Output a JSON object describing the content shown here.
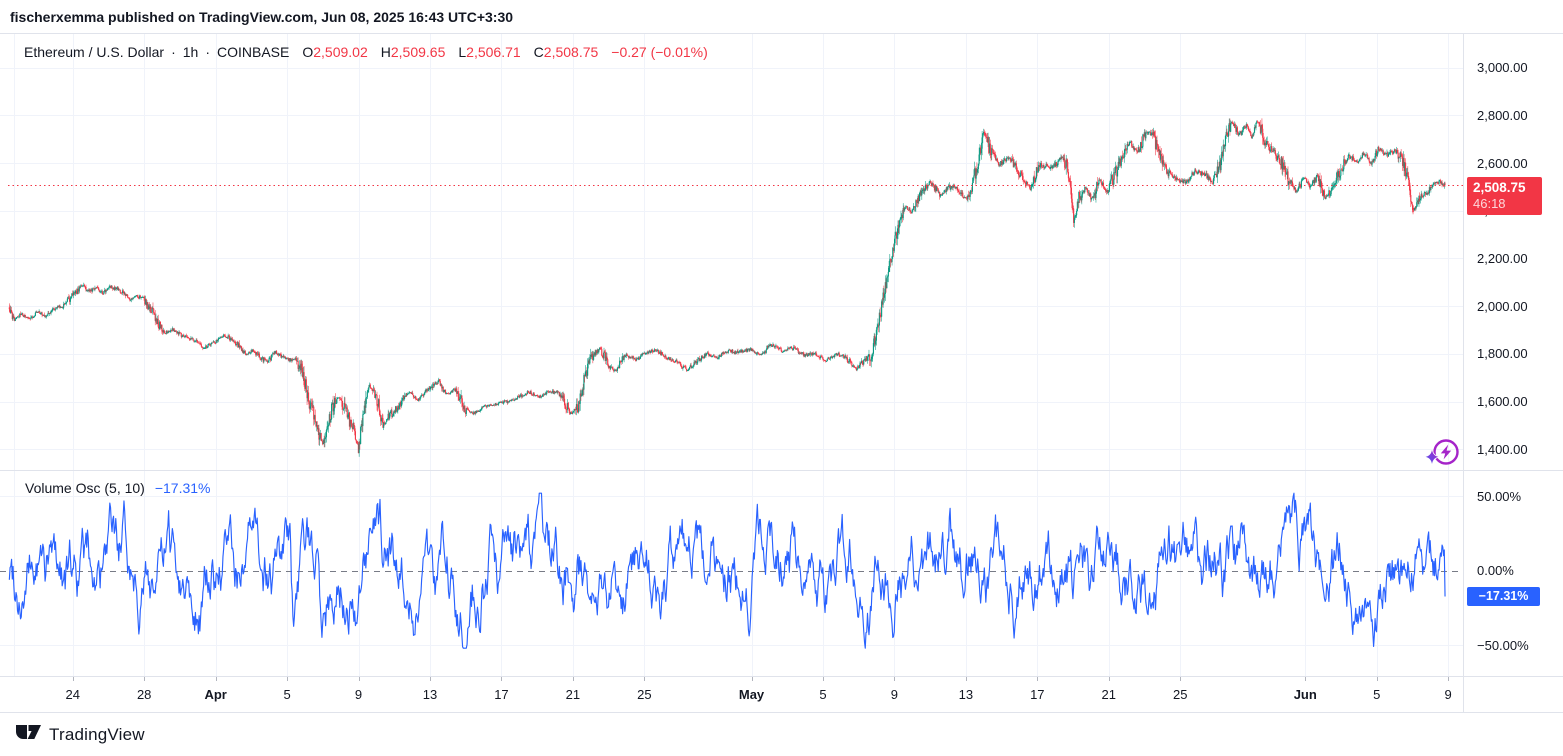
{
  "page": {
    "published_line": "fischerxemma published on TradingView.com, Jun 08, 2025 16:43 UTC+3:30",
    "brand": "TradingView"
  },
  "legend": {
    "title": "Ethereum / U.S. Dollar",
    "dot": "·",
    "interval": "1h",
    "exchange": "COINBASE",
    "o_label": "O",
    "o": "2,509.02",
    "h_label": "H",
    "h": "2,509.65",
    "l_label": "L",
    "l": "2,506.71",
    "c_label": "C",
    "c": "2,508.75",
    "change": "−0.27 (−0.01%)"
  },
  "indicator": {
    "name": "Volume Osc (5, 10)",
    "value": "−17.31%"
  },
  "badges": {
    "last_price": "2,508.75",
    "countdown": "46:18",
    "osc_value": "−17.31%"
  },
  "colors": {
    "up": "#089981",
    "down": "#f23645",
    "accent_blue": "#2962ff",
    "last_price_line": "#f23645",
    "grid": "#f0f3fa",
    "axis_border": "#e0e3eb",
    "text": "#131722",
    "zero_line": "#787b86",
    "tick": "#b2b5be",
    "icon_purple": "#a524c9",
    "icon_blue": "#5158f0"
  },
  "chart_data": [
    {
      "type": "candlestick",
      "title": "Ethereum / U.S. Dollar",
      "interval": "1h",
      "exchange": "COINBASE",
      "ohlc_current": {
        "open": 2509.02,
        "high": 2509.65,
        "low": 2506.71,
        "close": 2508.75,
        "change": -0.27,
        "change_pct": -0.01
      },
      "last_price_line": 2508.75,
      "y_axis": {
        "ticks": [
          {
            "label": "3,000.00",
            "value": 3000
          },
          {
            "label": "2,800.00",
            "value": 2800
          },
          {
            "label": "2,600.00",
            "value": 2600
          },
          {
            "label": "2,400.00",
            "value": 2400
          },
          {
            "label": "2,200.00",
            "value": 2200
          },
          {
            "label": "2,000.00",
            "value": 2000
          },
          {
            "label": "1,800.00",
            "value": 1800
          },
          {
            "label": "1,600.00",
            "value": 1600
          },
          {
            "label": "1,400.00",
            "value": 1400
          }
        ]
      },
      "x_axis": {
        "day_reference": "days since first visible session (Mar 20, 2025)",
        "ticks": [
          {
            "label": "24",
            "day": 4
          },
          {
            "label": "28",
            "day": 8
          },
          {
            "label": "Apr",
            "day": 12,
            "month": true
          },
          {
            "label": "5",
            "day": 16
          },
          {
            "label": "9",
            "day": 20
          },
          {
            "label": "13",
            "day": 24
          },
          {
            "label": "17",
            "day": 28
          },
          {
            "label": "21",
            "day": 32
          },
          {
            "label": "25",
            "day": 36
          },
          {
            "label": "May",
            "day": 42,
            "month": true
          },
          {
            "label": "5",
            "day": 46
          },
          {
            "label": "9",
            "day": 50
          },
          {
            "label": "13",
            "day": 54
          },
          {
            "label": "17",
            "day": 58
          },
          {
            "label": "21",
            "day": 62
          },
          {
            "label": "25",
            "day": 66
          },
          {
            "label": "Jun",
            "day": 73,
            "month": true
          },
          {
            "label": "5",
            "day": 77
          },
          {
            "label": "9",
            "day": 81
          }
        ]
      },
      "points_day_price": [
        [
          0.45,
          1995
        ],
        [
          0.7,
          1940
        ],
        [
          1.1,
          1968
        ],
        [
          1.5,
          1945
        ],
        [
          2.0,
          1972
        ],
        [
          2.5,
          1958
        ],
        [
          3.0,
          1992
        ],
        [
          3.5,
          2000
        ],
        [
          3.9,
          2038
        ],
        [
          4.2,
          2062
        ],
        [
          4.55,
          2092
        ],
        [
          4.9,
          2060
        ],
        [
          5.3,
          2075
        ],
        [
          5.7,
          2055
        ],
        [
          6.1,
          2085
        ],
        [
          6.5,
          2072
        ],
        [
          6.9,
          2052
        ],
        [
          7.2,
          2030
        ],
        [
          7.6,
          2046
        ],
        [
          8.0,
          2024
        ],
        [
          8.35,
          1988
        ],
        [
          8.6,
          1950
        ],
        [
          8.9,
          1915
        ],
        [
          9.2,
          1885
        ],
        [
          9.6,
          1905
        ],
        [
          10.0,
          1882
        ],
        [
          10.4,
          1870
        ],
        [
          10.9,
          1850
        ],
        [
          11.3,
          1826
        ],
        [
          11.7,
          1840
        ],
        [
          12.1,
          1856
        ],
        [
          12.5,
          1880
        ],
        [
          12.9,
          1856
        ],
        [
          13.3,
          1836
        ],
        [
          13.7,
          1796
        ],
        [
          14.1,
          1816
        ],
        [
          14.5,
          1782
        ],
        [
          14.9,
          1766
        ],
        [
          15.3,
          1806
        ],
        [
          15.7,
          1790
        ],
        [
          16.1,
          1776
        ],
        [
          16.5,
          1770
        ],
        [
          16.9,
          1716
        ],
        [
          17.2,
          1602
        ],
        [
          17.5,
          1545
        ],
        [
          17.8,
          1462
        ],
        [
          18.0,
          1420
        ],
        [
          18.3,
          1512
        ],
        [
          18.6,
          1590
        ],
        [
          18.9,
          1622
        ],
        [
          19.3,
          1556
        ],
        [
          19.7,
          1482
        ],
        [
          20.0,
          1398
        ],
        [
          20.3,
          1582
        ],
        [
          20.6,
          1668
        ],
        [
          21.0,
          1615
        ],
        [
          21.4,
          1498
        ],
        [
          21.8,
          1546
        ],
        [
          22.3,
          1586
        ],
        [
          22.8,
          1640
        ],
        [
          23.3,
          1606
        ],
        [
          23.9,
          1650
        ],
        [
          24.5,
          1686
        ],
        [
          24.9,
          1632
        ],
        [
          25.4,
          1652
        ],
        [
          26.0,
          1562
        ],
        [
          26.5,
          1552
        ],
        [
          27.1,
          1580
        ],
        [
          27.7,
          1590
        ],
        [
          28.3,
          1600
        ],
        [
          28.9,
          1616
        ],
        [
          29.5,
          1640
        ],
        [
          30.1,
          1620
        ],
        [
          30.7,
          1645
        ],
        [
          31.3,
          1630
        ],
        [
          31.9,
          1546
        ],
        [
          32.3,
          1580
        ],
        [
          32.7,
          1716
        ],
        [
          33.1,
          1790
        ],
        [
          33.5,
          1820
        ],
        [
          34.0,
          1756
        ],
        [
          34.4,
          1726
        ],
        [
          34.9,
          1794
        ],
        [
          35.5,
          1776
        ],
        [
          36.1,
          1806
        ],
        [
          36.7,
          1816
        ],
        [
          37.3,
          1782
        ],
        [
          37.9,
          1762
        ],
        [
          38.4,
          1732
        ],
        [
          38.9,
          1766
        ],
        [
          39.5,
          1800
        ],
        [
          40.1,
          1782
        ],
        [
          40.7,
          1814
        ],
        [
          41.3,
          1806
        ],
        [
          41.9,
          1820
        ],
        [
          42.5,
          1796
        ],
        [
          43.1,
          1838
        ],
        [
          43.7,
          1812
        ],
        [
          44.3,
          1826
        ],
        [
          44.9,
          1796
        ],
        [
          45.5,
          1800
        ],
        [
          46.2,
          1772
        ],
        [
          46.8,
          1800
        ],
        [
          47.3,
          1782
        ],
        [
          47.8,
          1736
        ],
        [
          48.2,
          1762
        ],
        [
          48.7,
          1802
        ],
        [
          49.0,
          1882
        ],
        [
          49.3,
          2002
        ],
        [
          49.6,
          2122
        ],
        [
          49.9,
          2232
        ],
        [
          50.2,
          2332
        ],
        [
          50.6,
          2422
        ],
        [
          51.0,
          2392
        ],
        [
          51.4,
          2462
        ],
        [
          52.0,
          2522
        ],
        [
          52.6,
          2466
        ],
        [
          53.2,
          2506
        ],
        [
          53.8,
          2472
        ],
        [
          54.1,
          2446
        ],
        [
          54.6,
          2582
        ],
        [
          55.0,
          2732
        ],
        [
          55.4,
          2646
        ],
        [
          55.9,
          2592
        ],
        [
          56.4,
          2626
        ],
        [
          57.0,
          2556
        ],
        [
          57.6,
          2496
        ],
        [
          58.2,
          2596
        ],
        [
          58.8,
          2576
        ],
        [
          59.4,
          2626
        ],
        [
          59.8,
          2550
        ],
        [
          60.05,
          2335
        ],
        [
          60.3,
          2452
        ],
        [
          60.7,
          2496
        ],
        [
          61.1,
          2446
        ],
        [
          61.5,
          2532
        ],
        [
          61.9,
          2476
        ],
        [
          62.3,
          2546
        ],
        [
          62.8,
          2632
        ],
        [
          63.2,
          2686
        ],
        [
          63.6,
          2646
        ],
        [
          64.0,
          2716
        ],
        [
          64.4,
          2730
        ],
        [
          64.9,
          2616
        ],
        [
          65.3,
          2562
        ],
        [
          65.8,
          2526
        ],
        [
          66.3,
          2522
        ],
        [
          66.8,
          2562
        ],
        [
          67.3,
          2556
        ],
        [
          67.8,
          2522
        ],
        [
          68.2,
          2586
        ],
        [
          68.6,
          2716
        ],
        [
          68.9,
          2776
        ],
        [
          69.3,
          2716
        ],
        [
          69.7,
          2756
        ],
        [
          70.0,
          2706
        ],
        [
          70.3,
          2782
        ],
        [
          70.7,
          2696
        ],
        [
          71.1,
          2656
        ],
        [
          71.6,
          2612
        ],
        [
          72.1,
          2522
        ],
        [
          72.5,
          2476
        ],
        [
          72.9,
          2536
        ],
        [
          73.3,
          2506
        ],
        [
          73.7,
          2546
        ],
        [
          74.1,
          2452
        ],
        [
          74.5,
          2496
        ],
        [
          75.0,
          2572
        ],
        [
          75.4,
          2632
        ],
        [
          75.9,
          2606
        ],
        [
          76.3,
          2642
        ],
        [
          76.7,
          2596
        ],
        [
          77.1,
          2662
        ],
        [
          77.6,
          2632
        ],
        [
          78.0,
          2652
        ],
        [
          78.4,
          2616
        ],
        [
          78.7,
          2546
        ],
        [
          79.0,
          2395
        ],
        [
          79.4,
          2456
        ],
        [
          79.8,
          2476
        ],
        [
          80.2,
          2506
        ],
        [
          80.5,
          2522
        ],
        [
          80.85,
          2508.75
        ]
      ]
    },
    {
      "type": "line",
      "name": "Volume Osc",
      "params": "(5, 10)",
      "current_value_pct": -17.31,
      "zero_line_dashed": true,
      "approx_range_pct": [
        -60,
        57
      ],
      "y_axis": {
        "ticks": [
          {
            "label": "50.00%",
            "value": 50
          },
          {
            "label": "0.00%",
            "value": 0
          },
          {
            "label": "−50.00%",
            "value": -50
          }
        ]
      },
      "extremes": [
        {
          "day": 16.33,
          "value_pct": -59
        },
        {
          "day": 17.7,
          "value_pct": 56
        },
        {
          "day": 53.1,
          "value_pct": 56
        }
      ]
    }
  ]
}
